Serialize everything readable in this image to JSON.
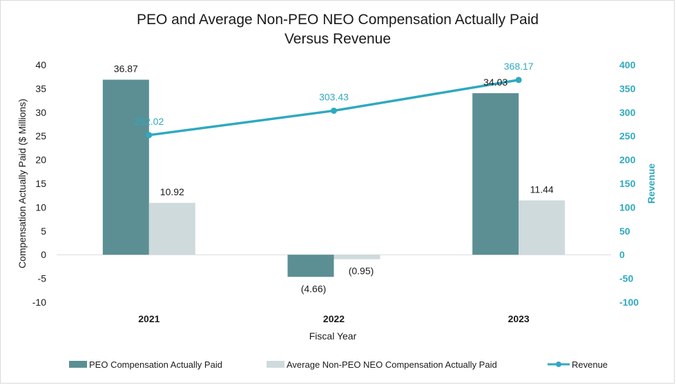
{
  "chart_data": {
    "type": "bar",
    "title_lines": [
      "PEO and Average Non-PEO NEO Compensation Actually Paid",
      "Versus Revenue"
    ],
    "categories": [
      "2021",
      "2022",
      "2023"
    ],
    "xlabel": "Fiscal Year",
    "ylabel": "Compensation Actually Paid ($ Millions)",
    "ylabel_right": "Revenue",
    "ylim": [
      -10,
      40
    ],
    "yticks": [
      -10,
      -5,
      0,
      5,
      10,
      15,
      20,
      25,
      30,
      35,
      40
    ],
    "ylim_right": [
      -100,
      400
    ],
    "yticks_right": [
      -100,
      -50,
      0,
      50,
      100,
      150,
      200,
      250,
      300,
      350,
      400
    ],
    "series": [
      {
        "name": "PEO Compensation Actually Paid",
        "kind": "bar",
        "axis": "left",
        "color": "#5b8f94",
        "values": [
          36.87,
          -4.66,
          34.03
        ],
        "labels": [
          "36.87",
          "(4.66)",
          "34.03"
        ]
      },
      {
        "name": "Average Non-PEO NEO Compensation Actually Paid",
        "kind": "bar",
        "axis": "left",
        "color": "#cfdadd",
        "values": [
          10.92,
          -0.95,
          11.44
        ],
        "labels": [
          "10.92",
          "(0.95)",
          "11.44"
        ]
      },
      {
        "name": "Revenue",
        "kind": "line",
        "axis": "right",
        "color": "#2fa9bf",
        "values": [
          252.02,
          303.43,
          368.17
        ],
        "labels": [
          "252.02",
          "303.43",
          "368.17"
        ]
      }
    ],
    "legend_position": "bottom"
  }
}
